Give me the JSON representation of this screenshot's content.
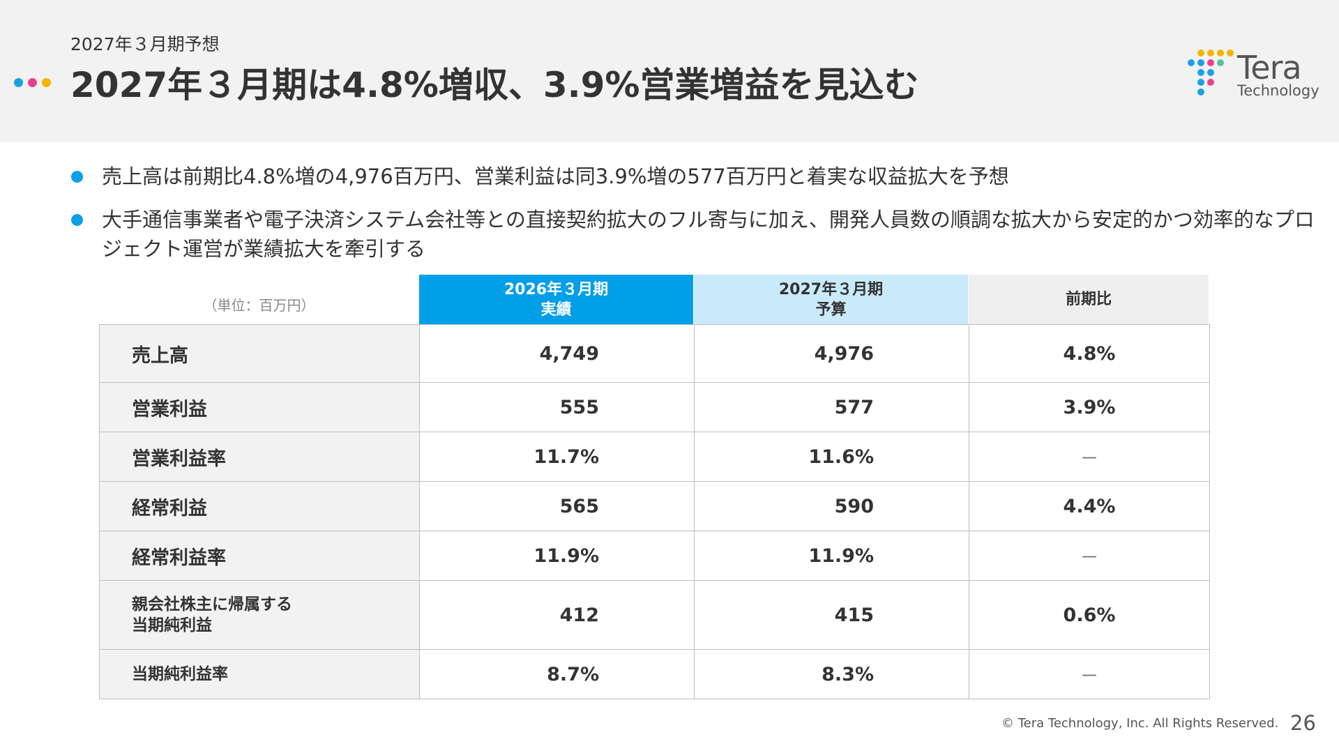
{
  "header": {
    "subtitle": "2027年３月期予想",
    "title": "2027年３月期は4.8%増収、3.9%営業増益を見込む",
    "dot_colors": [
      "#1aa0e6",
      "#e8418c",
      "#f6b400"
    ]
  },
  "logo": {
    "word": "Tera",
    "sub": "Technology",
    "colors": [
      "#1aa0e6",
      "#e8418c",
      "#f6b400",
      "#57c39a"
    ]
  },
  "bullets": [
    "売上高は前期比4.8%増の4,976百万円、営業利益は同3.9%増の577百万円と着実な収益拡大を予想",
    "大手通信事業者や電子決済システム会社等との直接契約拡大のフル寄与に加え、開発人員数の順調な拡大から安定的かつ効率的なプロジェクト運営が業績拡大を牽引する"
  ],
  "table": {
    "unit_note": "（単位：百万円）",
    "col_fy2026_line1": "2026年３月期",
    "col_fy2026_line2": "実績",
    "col_fy2027_line1": "2027年３月期",
    "col_fy2027_line2": "予算",
    "col_yoy": "前期比",
    "colors": {
      "fy2026_bg": "#009fe8",
      "fy2027_bg": "#c9eafb",
      "yoy_bg": "#efefef"
    },
    "rows": [
      {
        "label": "売上高",
        "label2": "",
        "fy2026": "4,749",
        "fy2027": "4,976",
        "yoy": "4.8%"
      },
      {
        "label": "営業利益",
        "label2": "",
        "fy2026": "555",
        "fy2027": "577",
        "yoy": "3.9%"
      },
      {
        "label": "営業利益率",
        "label2": "",
        "fy2026": "11.7%",
        "fy2027": "11.6%",
        "yoy": "－"
      },
      {
        "label": "経常利益",
        "label2": "",
        "fy2026": "565",
        "fy2027": "590",
        "yoy": "4.4%"
      },
      {
        "label": "経常利益率",
        "label2": "",
        "fy2026": "11.9%",
        "fy2027": "11.9%",
        "yoy": "－"
      },
      {
        "label": "親会社株主に帰属する",
        "label2": "当期純利益",
        "fy2026": "412",
        "fy2027": "415",
        "yoy": "0.6%"
      },
      {
        "label": "当期純利益率",
        "label2": "",
        "fy2026": "8.7%",
        "fy2027": "8.3%",
        "yoy": "－"
      }
    ]
  },
  "footer": {
    "copyright": "© Tera Technology, Inc. All Rights Reserved.",
    "page": "26"
  }
}
